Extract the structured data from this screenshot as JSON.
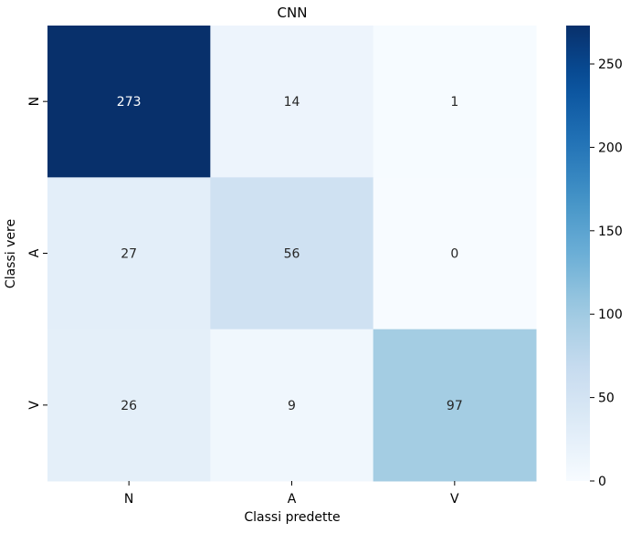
{
  "chart_data": {
    "type": "heatmap",
    "title": "CNN",
    "xlabel": "Classi predette",
    "ylabel": "Classi vere",
    "x_categories": [
      "N",
      "A",
      "V"
    ],
    "y_categories": [
      "N",
      "A",
      "V"
    ],
    "values": [
      [
        273,
        14,
        1
      ],
      [
        27,
        56,
        0
      ],
      [
        26,
        9,
        97
      ]
    ],
    "colormap": "Blues",
    "color_range": [
      0,
      273
    ],
    "colorbar_ticks": [
      0,
      50,
      100,
      150,
      200,
      250
    ],
    "annotations": true,
    "grid": false
  }
}
